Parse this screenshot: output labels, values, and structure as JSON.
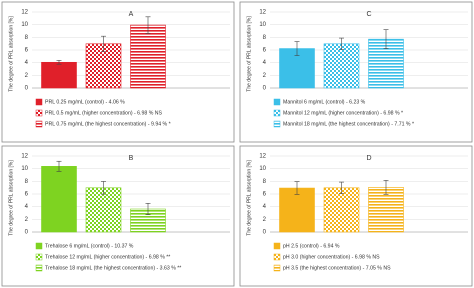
{
  "chart_data": [
    {
      "type": "bar",
      "title": "A",
      "ylabel": "The degree of PRL absorption [%]",
      "ylim": [
        0,
        12
      ],
      "yticks": [
        0,
        2,
        4,
        6,
        8,
        10,
        12
      ],
      "grid": true,
      "series": [
        {
          "name": "PRL 0.25 mg/mL (control) - 4.06 %",
          "color": "#e0202a",
          "pattern": "solid",
          "values": [
            4.06
          ],
          "errors": [
            0.3
          ]
        },
        {
          "name": "PRL 0.5 mg/mL (higher concentration) - 6.98 % NS",
          "color": "#e0202a",
          "pattern": "checker",
          "values": [
            6.98
          ],
          "errors": [
            1.2
          ]
        },
        {
          "name": "PRL 0.75 mg/mL (the highest concentration) - 9.94 % *",
          "color": "#e0202a",
          "pattern": "hstripe",
          "values": [
            9.94
          ],
          "errors": [
            1.3
          ]
        }
      ]
    },
    {
      "type": "bar",
      "title": "C",
      "ylabel": "The degree of PRL absorption [%]",
      "ylim": [
        0,
        12
      ],
      "yticks": [
        0,
        2,
        4,
        6,
        8,
        10,
        12
      ],
      "grid": true,
      "series": [
        {
          "name": "Mannitol 6 mg/mL (control) - 6.23 %",
          "color": "#3bbfe8",
          "pattern": "solid",
          "values": [
            6.23
          ],
          "errors": [
            1.1
          ]
        },
        {
          "name": "Mannitol 12 mg/mL (higher concentration) - 6.98 % *",
          "color": "#3bbfe8",
          "pattern": "checker",
          "values": [
            6.98
          ],
          "errors": [
            0.9
          ]
        },
        {
          "name": "Mannitol 18 mg/mL (the highest concentration) - 7.71 % *",
          "color": "#3bbfe8",
          "pattern": "hstripe",
          "values": [
            7.71
          ],
          "errors": [
            1.5
          ]
        }
      ]
    },
    {
      "type": "bar",
      "title": "B",
      "ylabel": "The degree of PRL absorption [%]",
      "ylim": [
        0,
        12
      ],
      "yticks": [
        0,
        2,
        4,
        6,
        8,
        10,
        12
      ],
      "grid": true,
      "series": [
        {
          "name": "Trehalose 6 mg/mL (control) - 10.37 %",
          "color": "#7ed321",
          "pattern": "solid",
          "values": [
            10.37
          ],
          "errors": [
            0.8
          ]
        },
        {
          "name": "Trehalose 12 mg/mL (higher concentration) - 6.98 % **",
          "color": "#7ed321",
          "pattern": "checker",
          "values": [
            6.98
          ],
          "errors": [
            1.0
          ]
        },
        {
          "name": "Trehalose 18 mg/mL (the highest concentration) - 3.63 % **",
          "color": "#7ed321",
          "pattern": "hstripe",
          "values": [
            3.63
          ],
          "errors": [
            0.9
          ]
        }
      ]
    },
    {
      "type": "bar",
      "title": "D",
      "ylabel": "The degree of PRL absorption [%]",
      "ylim": [
        0,
        12
      ],
      "yticks": [
        0,
        2,
        4,
        6,
        8,
        10,
        12
      ],
      "grid": true,
      "series": [
        {
          "name": "pH 2.5 (control) - 6.94 %",
          "color": "#f5b31a",
          "pattern": "solid",
          "values": [
            6.94
          ],
          "errors": [
            1.0
          ]
        },
        {
          "name": "pH 3.0 (higher concentration) - 6.98 % NS",
          "color": "#f5b31a",
          "pattern": "checker",
          "values": [
            6.98
          ],
          "errors": [
            0.9
          ]
        },
        {
          "name": "pH 3.5 (the highest concentration) - 7.05 % NS",
          "color": "#f5b31a",
          "pattern": "hstripe",
          "values": [
            7.05
          ],
          "errors": [
            1.1
          ]
        }
      ]
    }
  ]
}
